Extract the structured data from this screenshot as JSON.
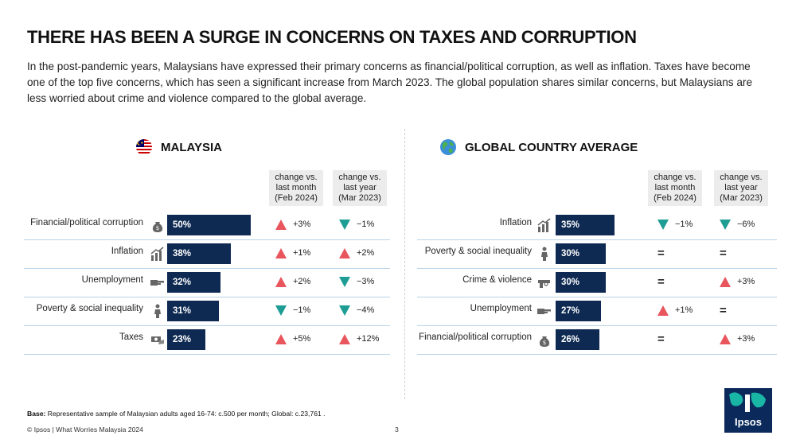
{
  "header": {
    "title": "THERE HAS BEEN A SURGE IN CONCERNS ON TAXES AND CORRUPTION",
    "subtitle": "In the post-pandemic years, Malaysians have expressed their primary concerns as financial/political corruption, as well as inflation. Taxes have become one of the top five concerns, which has seen a significant increase from March 2023. The global population shares similar concerns, but Malaysians are less worried about crime and violence compared to the global average."
  },
  "colors": {
    "bar": "#0e2a52",
    "up": "#e8555d",
    "down": "#1d9d94",
    "row_line": "#b9d3e6"
  },
  "columns": {
    "month": "change vs. last month (Feb 2024)",
    "year": "change vs. last year (Mar 2023)"
  },
  "chart_data": [
    {
      "type": "bar",
      "title": "MALAYSIA",
      "categories": [
        "Financial/political corruption",
        "Inflation",
        "Unemployment",
        "Poverty & social inequality",
        "Taxes"
      ],
      "values": [
        50,
        38,
        32,
        31,
        23
      ],
      "value_labels": [
        "50%",
        "38%",
        "32%",
        "31%",
        "23%"
      ],
      "change_vs_last_month": [
        "+3%",
        "+1%",
        "+2%",
        "-1%",
        "+5%"
      ],
      "change_vs_last_year": [
        "-1%",
        "+2%",
        "-3%",
        "-4%",
        "+12%"
      ],
      "icons": [
        "money-bag-icon",
        "rising-chart-icon",
        "pointing-hand-icon",
        "person-icon",
        "cash-hand-icon"
      ]
    },
    {
      "type": "bar",
      "title": "GLOBAL COUNTRY AVERAGE",
      "categories": [
        "Inflation",
        "Poverty & social inequality",
        "Crime & violence",
        "Unemployment",
        "Financial/political corruption"
      ],
      "values": [
        35,
        30,
        30,
        27,
        26
      ],
      "value_labels": [
        "35%",
        "30%",
        "30%",
        "27%",
        "26%"
      ],
      "change_vs_last_month": [
        "-1%",
        "=",
        "=",
        "+1%",
        "="
      ],
      "change_vs_last_year": [
        "-6%",
        "=",
        "+3%",
        "=",
        "+3%"
      ],
      "icons": [
        "rising-chart-icon",
        "person-icon",
        "gun-icon",
        "pointing-hand-icon",
        "money-bag-icon"
      ]
    }
  ],
  "footer": {
    "base_label": "Base:",
    "base_text": " Representative sample of Malaysian adults aged 16-74: c.500 per month; Global: c.23,761 .",
    "copyright": "© Ipsos | What Worries Malaysia 2024",
    "page": "3",
    "logo": "Ipsos"
  }
}
